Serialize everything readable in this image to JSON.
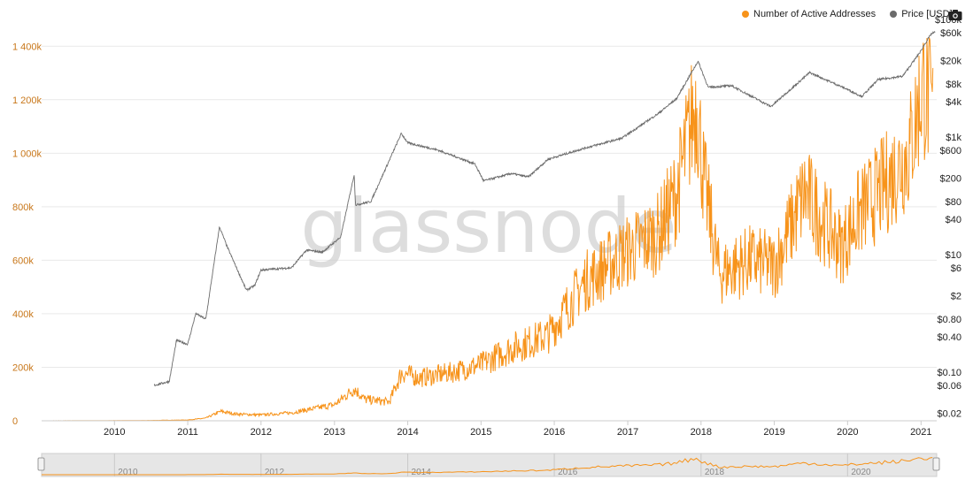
{
  "legend": {
    "active_label": "Number of Active Addresses",
    "price_label": "Price [USD]"
  },
  "watermark": "glassnode",
  "colors": {
    "active": "#f7931a",
    "price": "#6b6b6b",
    "left_axis_text": "#c8771a",
    "grid": "#e9e9e9",
    "navigator_bg": "#e6e6e6"
  },
  "icons": {
    "export": "camera-icon"
  },
  "chart_data": {
    "type": "line",
    "title": "",
    "x_axis": {
      "type": "date",
      "ticks": [
        "2010",
        "2011",
        "2012",
        "2013",
        "2014",
        "2015",
        "2016",
        "2017",
        "2018",
        "2019",
        "2020",
        "2021"
      ]
    },
    "y_left": {
      "label": "",
      "range": [
        0,
        1500000
      ],
      "ticks": [
        0,
        200000,
        400000,
        600000,
        800000,
        1000000,
        1200000,
        1400000
      ],
      "tick_labels": [
        "0",
        "200k",
        "400k",
        "600k",
        "800k",
        "1 000k",
        "1 200k",
        "1 400k"
      ]
    },
    "y_right": {
      "label": "",
      "scale": "log",
      "range": [
        0.015,
        100000
      ],
      "ticks": [
        0.02,
        0.06,
        0.1,
        0.4,
        0.8,
        2,
        6,
        10,
        40,
        80,
        200,
        600,
        1000,
        4000,
        8000,
        20000,
        60000,
        100000
      ],
      "tick_labels": [
        "$0.02",
        "$0.06",
        "$0.10",
        "$0.40",
        "$0.80",
        "$2",
        "$6",
        "$10",
        "$40",
        "$80",
        "$200",
        "$600",
        "$1k",
        "$4k",
        "$8k",
        "$20k",
        "$60k",
        "$100k"
      ]
    },
    "grid": true,
    "legend_position": "top-right",
    "series": [
      {
        "name": "Number of Active Addresses",
        "axis": "left",
        "color": "#f7931a",
        "points": [
          [
            "2009-01-03",
            100
          ],
          [
            "2009-06-01",
            200
          ],
          [
            "2010-01-01",
            500
          ],
          [
            "2010-06-01",
            1000
          ],
          [
            "2011-01-01",
            3000
          ],
          [
            "2011-04-01",
            10000
          ],
          [
            "2011-06-15",
            35000
          ],
          [
            "2011-09-01",
            25000
          ],
          [
            "2012-01-01",
            22000
          ],
          [
            "2012-06-01",
            30000
          ],
          [
            "2013-01-01",
            60000
          ],
          [
            "2013-04-10",
            120000
          ],
          [
            "2013-06-01",
            80000
          ],
          [
            "2013-10-01",
            70000
          ],
          [
            "2013-12-01",
            180000
          ],
          [
            "2014-03-01",
            160000
          ],
          [
            "2014-08-01",
            180000
          ],
          [
            "2015-01-01",
            210000
          ],
          [
            "2015-06-01",
            270000
          ],
          [
            "2015-12-01",
            320000
          ],
          [
            "2016-06-01",
            520000
          ],
          [
            "2016-12-01",
            620000
          ],
          [
            "2017-06-01",
            700000
          ],
          [
            "2017-09-01",
            850000
          ],
          [
            "2017-12-10",
            1200000
          ],
          [
            "2018-01-15",
            900000
          ],
          [
            "2018-04-01",
            550000
          ],
          [
            "2018-09-01",
            600000
          ],
          [
            "2019-01-01",
            580000
          ],
          [
            "2019-06-01",
            850000
          ],
          [
            "2019-12-01",
            650000
          ],
          [
            "2020-03-01",
            780000
          ],
          [
            "2020-06-01",
            850000
          ],
          [
            "2020-11-01",
            1000000
          ],
          [
            "2021-01-10",
            1250000
          ],
          [
            "2021-03-01",
            1150000
          ]
        ]
      },
      {
        "name": "Price [USD]",
        "axis": "right",
        "color": "#6b6b6b",
        "points": [
          [
            "2010-07-18",
            0.06
          ],
          [
            "2010-10-01",
            0.07
          ],
          [
            "2010-11-06",
            0.35
          ],
          [
            "2011-01-01",
            0.3
          ],
          [
            "2011-02-10",
            1.0
          ],
          [
            "2011-04-01",
            0.8
          ],
          [
            "2011-06-08",
            30
          ],
          [
            "2011-07-15",
            14
          ],
          [
            "2011-10-20",
            2.5
          ],
          [
            "2011-12-01",
            3.0
          ],
          [
            "2012-01-01",
            5.5
          ],
          [
            "2012-06-01",
            6
          ],
          [
            "2012-08-15",
            12
          ],
          [
            "2012-11-01",
            11
          ],
          [
            "2013-02-01",
            20
          ],
          [
            "2013-04-09",
            230
          ],
          [
            "2013-04-16",
            70
          ],
          [
            "2013-07-01",
            80
          ],
          [
            "2013-11-30",
            1150
          ],
          [
            "2014-01-01",
            800
          ],
          [
            "2014-06-01",
            600
          ],
          [
            "2014-12-01",
            350
          ],
          [
            "2015-01-14",
            180
          ],
          [
            "2015-06-01",
            240
          ],
          [
            "2015-08-25",
            210
          ],
          [
            "2015-12-01",
            420
          ],
          [
            "2016-06-01",
            650
          ],
          [
            "2016-12-01",
            950
          ],
          [
            "2017-06-01",
            2500
          ],
          [
            "2017-09-01",
            4500
          ],
          [
            "2017-12-17",
            19500
          ],
          [
            "2018-02-06",
            7000
          ],
          [
            "2018-06-01",
            7500
          ],
          [
            "2018-12-15",
            3300
          ],
          [
            "2019-06-26",
            12500
          ],
          [
            "2019-12-18",
            6800
          ],
          [
            "2020-03-12",
            4900
          ],
          [
            "2020-06-01",
            9500
          ],
          [
            "2020-10-01",
            10800
          ],
          [
            "2020-12-31",
            29000
          ],
          [
            "2021-01-15",
            36000
          ],
          [
            "2021-02-21",
            57000
          ],
          [
            "2021-03-13",
            61000
          ]
        ]
      }
    ]
  }
}
